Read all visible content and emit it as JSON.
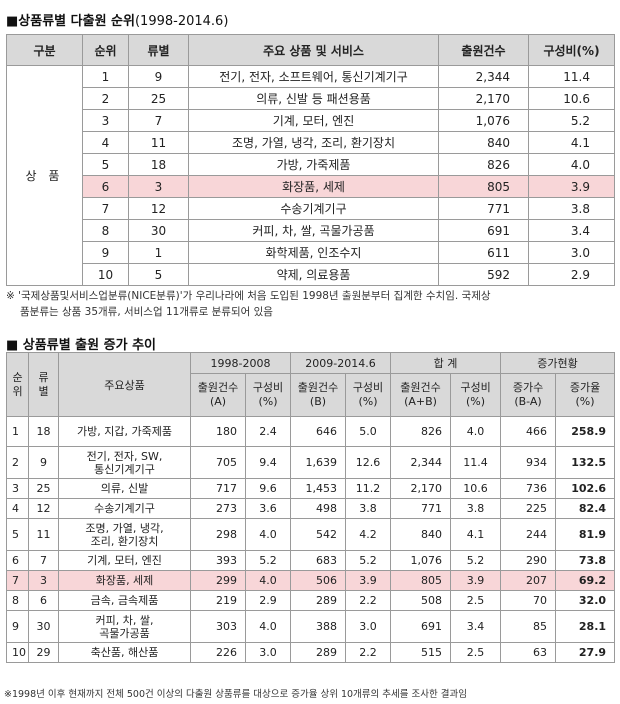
{
  "section1": {
    "title_bold": "■상품류별 다출원 순위",
    "title_period": "(1998-2014.6)",
    "headers": [
      "구분",
      "순위",
      "류별",
      "주요 상품 및 서비스",
      "출원건수",
      "구성비(%)"
    ],
    "group_label": "상 품",
    "rows": [
      {
        "rank": "1",
        "class": "9",
        "name": "전기, 전자, 소프트웨어, 통신기계기구",
        "count": "2,344",
        "ratio": "11.4"
      },
      {
        "rank": "2",
        "class": "25",
        "name": "의류, 신발 등 패션용품",
        "count": "2,170",
        "ratio": "10.6"
      },
      {
        "rank": "3",
        "class": "7",
        "name": "기계, 모터, 엔진",
        "count": "1,076",
        "ratio": "5.2"
      },
      {
        "rank": "4",
        "class": "11",
        "name": "조명, 가열, 냉각, 조리, 환기장치",
        "count": "840",
        "ratio": "4.1"
      },
      {
        "rank": "5",
        "class": "18",
        "name": "가방, 가죽제품",
        "count": "826",
        "ratio": "4.0"
      },
      {
        "rank": "6",
        "class": "3",
        "name": "화장품, 세제",
        "count": "805",
        "ratio": "3.9"
      },
      {
        "rank": "7",
        "class": "12",
        "name": "수송기계기구",
        "count": "771",
        "ratio": "3.8"
      },
      {
        "rank": "8",
        "class": "30",
        "name": "커피, 차, 쌀, 곡물가공품",
        "count": "691",
        "ratio": "3.4"
      },
      {
        "rank": "9",
        "class": "1",
        "name": "화학제품, 인조수지",
        "count": "611",
        "ratio": "3.0"
      },
      {
        "rank": "10",
        "class": "5",
        "name": "약제, 의료용품",
        "count": "592",
        "ratio": "2.9"
      }
    ],
    "highlight_color": "#f8d6d8",
    "note_line1": "※ '국제상품및서비스업분류(NICE분류)'가 우리나라에 처음 도입된 1998년 출원분부터 집계한 수치임. 국제상",
    "note_line2": "품분류는 상품 35개류, 서비스업 11개류로 분류되어 있음"
  },
  "section2": {
    "title": "■ 상품류별 출원 증가 추이",
    "headers": {
      "rank": "순위",
      "class": "류별",
      "product": "주요상품",
      "period1": "1998-2008",
      "period2": "2009-2014.6",
      "total": "합 계",
      "growth": "증가현황",
      "p1_count": "출원건수\n(A)",
      "p1_ratio": "구성비\n(%)",
      "p2_count": "출원건수\n(B)",
      "p2_ratio": "구성비\n(%)",
      "t_count": "출원건수\n(A+B)",
      "t_ratio": "구성비\n(%)",
      "g_count": "증가수\n(B-A)",
      "g_rate": "증가율\n(%)"
    },
    "rows": [
      {
        "rank": "1",
        "class": "18",
        "product": "가방, 지갑, 가죽제품",
        "a": "180",
        "ar": "2.4",
        "b": "646",
        "br": "5.0",
        "ab": "826",
        "abr": "4.0",
        "inc": "466",
        "rate": "258.9"
      },
      {
        "rank": "2",
        "class": "9",
        "product": "전기, 전자, SW,\n통신기계기구",
        "a": "705",
        "ar": "9.4",
        "b": "1,639",
        "br": "12.6",
        "ab": "2,344",
        "abr": "11.4",
        "inc": "934",
        "rate": "132.5"
      },
      {
        "rank": "3",
        "class": "25",
        "product": "의류, 신발",
        "a": "717",
        "ar": "9.6",
        "b": "1,453",
        "br": "11.2",
        "ab": "2,170",
        "abr": "10.6",
        "inc": "736",
        "rate": "102.6"
      },
      {
        "rank": "4",
        "class": "12",
        "product": "수송기계기구",
        "a": "273",
        "ar": "3.6",
        "b": "498",
        "br": "3.8",
        "ab": "771",
        "abr": "3.8",
        "inc": "225",
        "rate": "82.4"
      },
      {
        "rank": "5",
        "class": "11",
        "product": "조명, 가열, 냉각,\n조리, 환기장치",
        "a": "298",
        "ar": "4.0",
        "b": "542",
        "br": "4.2",
        "ab": "840",
        "abr": "4.1",
        "inc": "244",
        "rate": "81.9"
      },
      {
        "rank": "6",
        "class": "7",
        "product": "기계, 모터, 엔진",
        "a": "393",
        "ar": "5.2",
        "b": "683",
        "br": "5.2",
        "ab": "1,076",
        "abr": "5.2",
        "inc": "290",
        "rate": "73.8"
      },
      {
        "rank": "7",
        "class": "3",
        "product": "화장품, 세제",
        "a": "299",
        "ar": "4.0",
        "b": "506",
        "br": "3.9",
        "ab": "805",
        "abr": "3.9",
        "inc": "207",
        "rate": "69.2"
      },
      {
        "rank": "8",
        "class": "6",
        "product": "금속, 금속제품",
        "a": "219",
        "ar": "2.9",
        "b": "289",
        "br": "2.2",
        "ab": "508",
        "abr": "2.5",
        "inc": "70",
        "rate": "32.0"
      },
      {
        "rank": "9",
        "class": "30",
        "product": "커피, 차, 쌀,\n곡물가공품",
        "a": "303",
        "ar": "4.0",
        "b": "388",
        "br": "3.0",
        "ab": "691",
        "abr": "3.4",
        "inc": "85",
        "rate": "28.1"
      },
      {
        "rank": "10",
        "class": "29",
        "product": "축산품, 해산품",
        "a": "226",
        "ar": "3.0",
        "b": "289",
        "br": "2.2",
        "ab": "515",
        "abr": "2.5",
        "inc": "63",
        "rate": "27.9"
      }
    ],
    "footnote": "※1998년 이후 현재까지 전체 500건 이상의 다출원 상품류를 대상으로 증가율 상위 10개류의 추세를 조사한 결과임"
  }
}
